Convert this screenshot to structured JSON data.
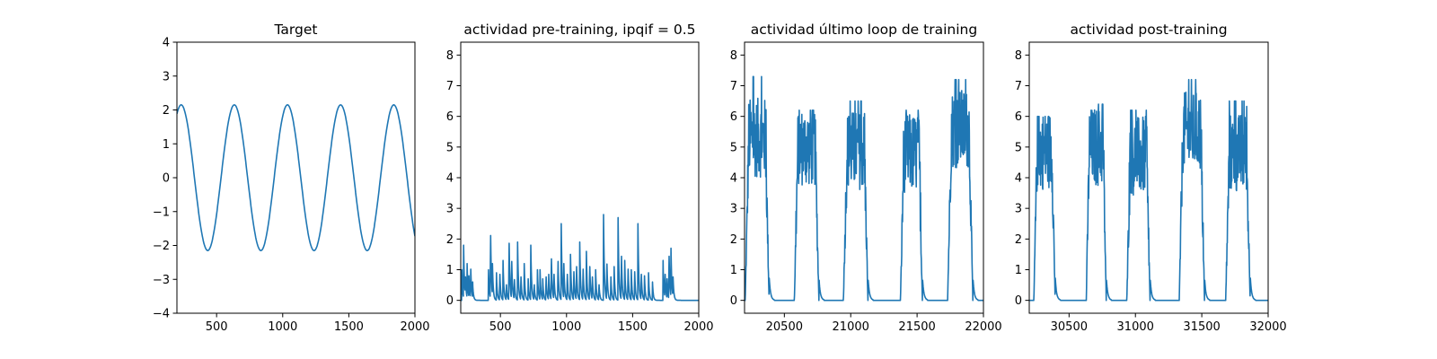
{
  "chart_data": [
    {
      "type": "line",
      "title": "Target",
      "xlim": [
        200,
        2000
      ],
      "ylim": [
        -4,
        4
      ],
      "xticks": [
        500,
        1000,
        1500,
        2000
      ],
      "yticks": [
        -4,
        -3,
        -2,
        -1,
        0,
        1,
        2,
        3,
        4
      ],
      "xtick_labels": [
        "500",
        "1000",
        "1500",
        "2000"
      ],
      "ytick_labels": [
        "−4",
        "−3",
        "−2",
        "−1",
        "0",
        "1",
        "2",
        "3",
        "4"
      ],
      "series": [
        {
          "kind": "sine",
          "amplitude": 2.15,
          "period": 402,
          "peak_x": 232,
          "x_start": 200,
          "x_end": 2000
        }
      ]
    },
    {
      "type": "line",
      "title": "actividad pre-training, ipqif = 0.5",
      "xlim": [
        200,
        2000
      ],
      "ylim": [
        -0.42,
        8.42
      ],
      "xticks": [
        500,
        1000,
        1500,
        2000
      ],
      "yticks": [
        0,
        1,
        2,
        3,
        4,
        5,
        6,
        7,
        8
      ],
      "xtick_labels": [
        "500",
        "1000",
        "1500",
        "2000"
      ],
      "ytick_labels": [
        "0",
        "1",
        "2",
        "3",
        "4",
        "5",
        "6",
        "7",
        "8"
      ],
      "series": [
        {
          "kind": "spikes",
          "x_start": 200,
          "x_end": 2000,
          "baseline": 0,
          "peaks": [
            [
              208,
              1.0
            ],
            [
              222,
              1.8
            ],
            [
              235,
              0.9
            ],
            [
              248,
              1.2
            ],
            [
              262,
              0.8
            ],
            [
              275,
              1.2
            ],
            [
              290,
              0.6
            ],
            [
              410,
              1.0
            ],
            [
              425,
              2.5
            ],
            [
              440,
              1.2
            ],
            [
              470,
              0.9
            ],
            [
              495,
              1.0
            ],
            [
              520,
              1.3
            ],
            [
              545,
              0.6
            ],
            [
              565,
              2.2
            ],
            [
              585,
              1.5
            ],
            [
              605,
              0.8
            ],
            [
              630,
              1.9
            ],
            [
              655,
              0.9
            ],
            [
              680,
              1.2
            ],
            [
              710,
              0.7
            ],
            [
              730,
              1.8
            ],
            [
              755,
              0.6
            ],
            [
              780,
              1.0
            ],
            [
              800,
              1.0
            ],
            [
              820,
              0.7
            ],
            [
              845,
              0.9
            ],
            [
              865,
              1.0
            ],
            [
              885,
              1.6
            ],
            [
              905,
              1.0
            ],
            [
              935,
              1.5
            ],
            [
              960,
              2.5
            ],
            [
              980,
              1.2
            ],
            [
              1005,
              1.0
            ],
            [
              1030,
              1.5
            ],
            [
              1055,
              1.1
            ],
            [
              1075,
              1.3
            ],
            [
              1100,
              1.9
            ],
            [
              1125,
              1.2
            ],
            [
              1150,
              1.6
            ],
            [
              1175,
              1.3
            ],
            [
              1195,
              0.9
            ],
            [
              1220,
              1.0
            ],
            [
              1245,
              0.6
            ],
            [
              1280,
              2.8
            ],
            [
              1305,
              1.4
            ],
            [
              1335,
              0.9
            ],
            [
              1360,
              1.1
            ],
            [
              1390,
              2.7
            ],
            [
              1415,
              1.7
            ],
            [
              1440,
              1.3
            ],
            [
              1465,
              1.2
            ],
            [
              1490,
              1.0
            ],
            [
              1515,
              1.1
            ],
            [
              1540,
              2.5
            ],
            [
              1565,
              1.0
            ],
            [
              1590,
              0.8
            ],
            [
              1620,
              0.9
            ],
            [
              1650,
              0.6
            ],
            [
              1730,
              1.3
            ],
            [
              1745,
              1.0
            ],
            [
              1760,
              0.7
            ],
            [
              1775,
              1.7
            ],
            [
              1790,
              1.7
            ],
            [
              1805,
              0.9
            ]
          ]
        }
      ]
    },
    {
      "type": "line",
      "title": "actividad último loop de training",
      "xlim": [
        20200,
        22000
      ],
      "ylim": [
        -0.42,
        8.42
      ],
      "xticks": [
        20500,
        21000,
        21500,
        22000
      ],
      "yticks": [
        0,
        1,
        2,
        3,
        4,
        5,
        6,
        7,
        8
      ],
      "xtick_labels": [
        "20500",
        "21000",
        "21500",
        "22000"
      ],
      "ytick_labels": [
        "0",
        "1",
        "2",
        "3",
        "4",
        "5",
        "6",
        "7",
        "8"
      ],
      "series": [
        {
          "kind": "bursts",
          "x_start": 20200,
          "x_end": 22000,
          "baseline": 0,
          "bursts": [
            {
              "start": 20205,
              "end": 20385,
              "plateau": 5.3,
              "max": 7.3
            },
            {
              "start": 20575,
              "end": 20760,
              "plateau": 5.0,
              "max": 6.2
            },
            {
              "start": 20945,
              "end": 21130,
              "plateau": 4.9,
              "max": 6.5
            },
            {
              "start": 21375,
              "end": 21540,
              "plateau": 4.8,
              "max": 6.2
            },
            {
              "start": 21730,
              "end": 21920,
              "plateau": 5.6,
              "max": 7.2
            }
          ]
        }
      ]
    },
    {
      "type": "line",
      "title": "actividad post-training",
      "xlim": [
        30200,
        32000
      ],
      "ylim": [
        -0.42,
        8.42
      ],
      "xticks": [
        30500,
        31000,
        31500,
        32000
      ],
      "yticks": [
        0,
        1,
        2,
        3,
        4,
        5,
        6,
        7,
        8
      ],
      "xtick_labels": [
        "30500",
        "31000",
        "31500",
        "32000"
      ],
      "ytick_labels": [
        "0",
        "1",
        "2",
        "3",
        "4",
        "5",
        "6",
        "7",
        "8"
      ],
      "series": [
        {
          "kind": "bursts",
          "x_start": 30200,
          "x_end": 32000,
          "baseline": 0,
          "bursts": [
            {
              "start": 30235,
              "end": 30395,
              "plateau": 4.9,
              "max": 6.0
            },
            {
              "start": 30630,
              "end": 30780,
              "plateau": 5.0,
              "max": 6.4
            },
            {
              "start": 30935,
              "end": 31110,
              "plateau": 4.7,
              "max": 6.2
            },
            {
              "start": 31330,
              "end": 31520,
              "plateau": 5.5,
              "max": 7.2
            },
            {
              "start": 31680,
              "end": 31865,
              "plateau": 4.8,
              "max": 6.5
            }
          ]
        }
      ]
    }
  ],
  "colors": {
    "line": "#1f77b4",
    "axes": "#000000",
    "background": "#ffffff"
  }
}
